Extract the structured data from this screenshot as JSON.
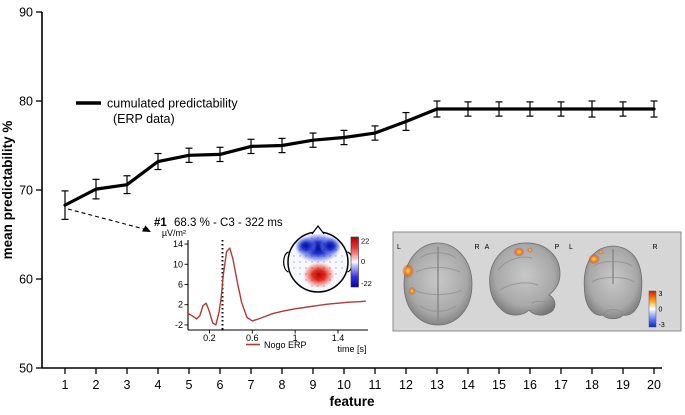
{
  "chart_data": [
    {
      "type": "line",
      "name": "cumulated predictability curve",
      "xlabel": "feature",
      "ylabel": "mean predictability %",
      "legend_line1": "cumulated predictability",
      "legend_line2": "(ERP data)",
      "x": [
        1,
        2,
        3,
        4,
        5,
        6,
        7,
        8,
        9,
        10,
        11,
        12,
        13,
        14,
        15,
        16,
        17,
        18,
        19,
        20
      ],
      "values": [
        68.3,
        70.1,
        70.6,
        73.2,
        73.9,
        74.0,
        74.9,
        75.0,
        75.6,
        75.9,
        76.4,
        77.7,
        79.1,
        79.1,
        79.1,
        79.1,
        79.1,
        79.1,
        79.1,
        79.1
      ],
      "errors": [
        1.6,
        1.1,
        1.0,
        0.9,
        0.8,
        0.8,
        0.8,
        0.8,
        0.8,
        0.8,
        0.8,
        1.0,
        0.9,
        0.8,
        0.8,
        0.8,
        0.8,
        0.9,
        0.8,
        0.9
      ],
      "ylim": [
        50,
        90
      ],
      "yticks": [
        50,
        60,
        70,
        80,
        90
      ],
      "grid": false,
      "legend_position": "upper-left",
      "line_color": "#000000",
      "annotation": {
        "rank": "#1",
        "text": "68.3 % - C3 - 322 ms"
      }
    },
    {
      "type": "line",
      "name": "Nogo ERP inset at electrode C3",
      "xlabel": "time [s]",
      "ylabel": "µV/m²",
      "legend": "Nogo ERP",
      "color": "#b03a36",
      "xlim": [
        0,
        1.68
      ],
      "ylim": [
        -3,
        14.8
      ],
      "yticks": [
        14,
        10,
        6,
        2,
        -2
      ],
      "xticks": [
        0.2,
        0.6,
        1,
        1.4
      ],
      "xticklabels": [
        "0.2",
        "0.6",
        "1",
        "1.4"
      ],
      "marker_time_s": 0.322,
      "x": [
        0.0,
        0.04,
        0.08,
        0.11,
        0.14,
        0.17,
        0.2,
        0.23,
        0.26,
        0.29,
        0.31,
        0.33,
        0.36,
        0.39,
        0.42,
        0.46,
        0.5,
        0.55,
        0.6,
        0.66,
        0.72,
        0.8,
        0.9,
        1.0,
        1.1,
        1.2,
        1.3,
        1.4,
        1.5,
        1.6,
        1.66
      ],
      "y": [
        0.3,
        -0.2,
        -0.8,
        -0.2,
        1.8,
        2.3,
        0.6,
        -1.6,
        -2.0,
        0.5,
        3.5,
        8.0,
        12.5,
        13.2,
        11.0,
        6.5,
        2.5,
        -0.5,
        -1.2,
        -0.8,
        -0.3,
        0.3,
        0.8,
        1.2,
        1.5,
        1.8,
        2.1,
        2.3,
        2.5,
        2.6,
        2.7
      ]
    },
    {
      "type": "heatmap",
      "name": "topographic scalp map",
      "colorbar": {
        "max": 22,
        "mid": 0,
        "min": -22
      },
      "colors": {
        "positive": "#c40000",
        "negative": "#0000b4"
      }
    },
    {
      "type": "heatmap",
      "name": "source localization brain slices",
      "orientation_labels": [
        "L",
        "R",
        "A",
        "P",
        "L",
        "R"
      ],
      "colorbar": {
        "max": 3,
        "mid": 0,
        "min": -3
      }
    }
  ]
}
